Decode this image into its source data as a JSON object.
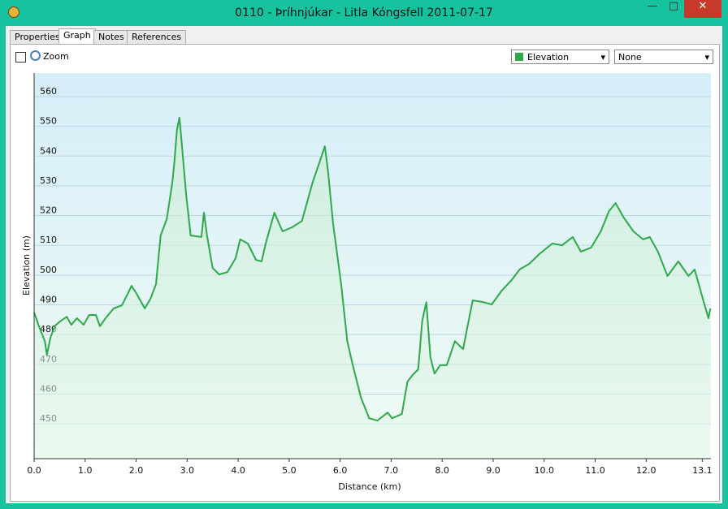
{
  "window": {
    "title": "0110 - Þríhnjúkar - Litla Kóngsfell 2011-07-17"
  },
  "tabs": [
    "Properties",
    "Graph",
    "Notes",
    "References"
  ],
  "toolbar": {
    "zoom": "Zoom",
    "secondary": "None"
  },
  "chart_data": {
    "type": "line",
    "x_label": "Distance  (km)",
    "y_label": "Elevation (m)",
    "x": [
      0,
      0.1,
      0.21,
      0.25,
      0.32,
      0.41,
      0.53,
      0.64,
      0.73,
      0.84,
      0.97,
      1.08,
      1.21,
      1.29,
      1.4,
      1.56,
      1.72,
      1.85,
      1.91,
      2.01,
      2.17,
      2.28,
      2.39,
      2.48,
      2.6,
      2.71,
      2.75,
      2.8,
      2.85,
      2.9,
      2.98,
      3.07,
      3.28,
      3.33,
      3.39,
      3.5,
      3.63,
      3.79,
      3.95,
      4.04,
      4.19,
      4.35,
      4.46,
      4.54,
      4.71,
      4.87,
      5.06,
      5.25,
      5.46,
      5.62,
      5.7,
      5.76,
      5.86,
      6.02,
      6.14,
      6.25,
      6.41,
      6.57,
      6.73,
      6.93,
      7.02,
      7.21,
      7.32,
      7.42,
      7.53,
      7.61,
      7.69,
      7.77,
      7.85,
      7.96,
      8.09,
      8.25,
      8.41,
      8.6,
      8.81,
      8.97,
      9.17,
      9.36,
      9.52,
      9.71,
      9.92,
      10.16,
      10.35,
      10.56,
      10.72,
      10.92,
      11.11,
      11.27,
      11.4,
      11.56,
      11.75,
      11.94,
      12.07,
      12.23,
      12.42,
      12.63,
      12.83,
      12.95,
      13.12,
      13.22,
      13.26
    ],
    "series": [
      {
        "name": "Elevation",
        "color": "#2ea84a",
        "values": [
          487.4,
          482.5,
          477.8,
          473.2,
          479,
          483,
          484.7,
          486,
          483.3,
          485.5,
          483.3,
          486.6,
          486.6,
          482.8,
          485.5,
          488.8,
          489.8,
          494.2,
          496.4,
          493.7,
          488.8,
          492,
          496.9,
          513.3,
          518.8,
          531.1,
          537.9,
          548.8,
          552.9,
          543.3,
          527,
          513.3,
          512.8,
          521,
          513.3,
          502.4,
          500.2,
          501,
          505.7,
          512,
          510.6,
          505.1,
          504.6,
          510.6,
          521,
          514.7,
          516.1,
          518.2,
          531.1,
          539.2,
          543.3,
          535.2,
          517.4,
          496.9,
          477.8,
          469.6,
          458.7,
          451.9,
          451.1,
          453.8,
          451.9,
          453.3,
          464.2,
          466.4,
          468.3,
          484.7,
          490.9,
          472.4,
          466.9,
          469.7,
          469.7,
          477.8,
          475.1,
          491.5,
          490.9,
          490.1,
          494.8,
          498.3,
          501.9,
          503.8,
          507.3,
          510.6,
          510,
          512.8,
          507.9,
          509.2,
          514.7,
          521.5,
          524.2,
          519.3,
          514.7,
          512,
          512.8,
          507.9,
          499.7,
          504.6,
          499.7,
          501.9,
          491.5,
          485.5,
          488.8
        ]
      }
    ],
    "xlim": [
      0,
      13.27
    ],
    "ylim": [
      438.3,
      567.9
    ],
    "xticks": [
      {
        "value": 0,
        "label": "0.0"
      },
      {
        "value": 1,
        "label": "1.0"
      },
      {
        "value": 2,
        "label": "2.0"
      },
      {
        "value": 3,
        "label": "3.0"
      },
      {
        "value": 4,
        "label": "4.0"
      },
      {
        "value": 5,
        "label": "5.0"
      },
      {
        "value": 6,
        "label": "6.0"
      },
      {
        "value": 7,
        "label": "7.0"
      },
      {
        "value": 8,
        "label": "8.0"
      },
      {
        "value": 9,
        "label": "9.0"
      },
      {
        "value": 10,
        "label": "10.0"
      },
      {
        "value": 11,
        "label": "11.0"
      },
      {
        "value": 12,
        "label": "12.0"
      },
      13.1
    ],
    "yticks": [
      450,
      460,
      470,
      480,
      490,
      500,
      510,
      520,
      530,
      540,
      550,
      560
    ],
    "grid": true
  }
}
